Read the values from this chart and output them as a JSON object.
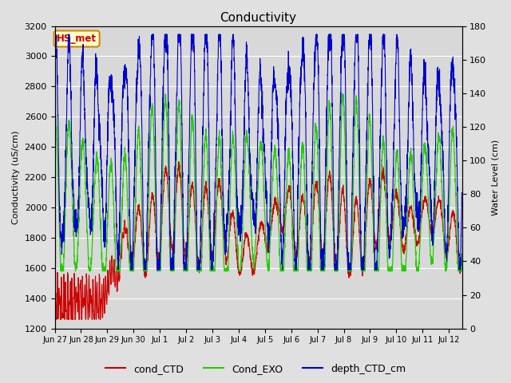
{
  "title": "Conductivity",
  "ylabel_left": "Conductivity (uS/cm)",
  "ylabel_right": "Water Level (cm)",
  "ylim_left": [
    1200,
    3200
  ],
  "ylim_right": [
    0,
    180
  ],
  "fig_bg_color": "#e0e0e0",
  "plot_bg_color": "#d8d8d8",
  "legend_labels": [
    "cond_CTD",
    "Cond_EXO",
    "depth_CTD_cm"
  ],
  "legend_colors": [
    "#cc0000",
    "#22cc00",
    "#0000cc"
  ],
  "annotation_text": "HS_met",
  "annotation_bg": "#ffffcc",
  "annotation_border": "#cc8800",
  "annotation_text_color": "#cc0000",
  "tick_labels": [
    "Jun 27",
    "Jun 28",
    "Jun 29",
    "Jun 30",
    "Jul 1",
    "Jul 2",
    "Jul 3",
    "Jul 4",
    "Jul 5",
    "Jul 6",
    "Jul 7",
    "Jul 8",
    "Jul 9",
    "Jul 10",
    "Jul 11",
    "Jul 12"
  ],
  "tick_positions": [
    0,
    1,
    2,
    3,
    4,
    5,
    6,
    7,
    8,
    9,
    10,
    11,
    12,
    13,
    14,
    15
  ],
  "yticks_left": [
    1200,
    1400,
    1600,
    1800,
    2000,
    2200,
    2400,
    2600,
    2800,
    3000,
    3200
  ],
  "yticks_right": [
    0,
    20,
    40,
    60,
    80,
    100,
    120,
    140,
    160,
    180
  ]
}
